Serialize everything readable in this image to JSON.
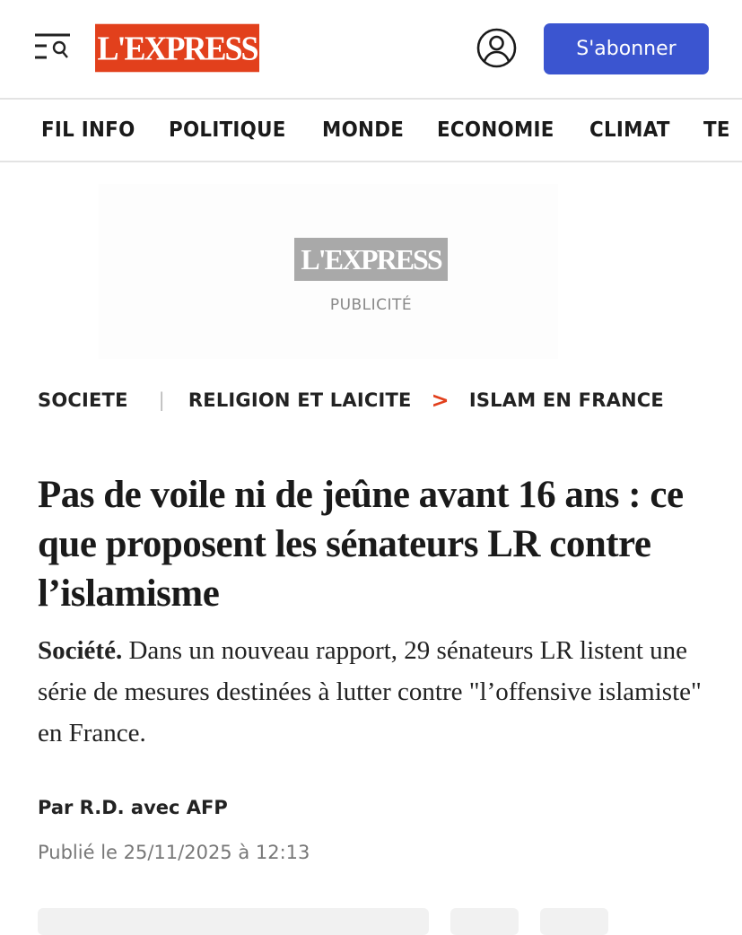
{
  "header": {
    "logo": "L'EXPRESS",
    "subscribe_label": "S'abonner",
    "brand_color": "#e2401c",
    "button_color": "#3b55d0"
  },
  "nav": {
    "items": [
      "FIL INFO",
      "POLITIQUE",
      "MONDE",
      "ECONOMIE",
      "CLIMAT",
      "TE"
    ]
  },
  "ad": {
    "logo": "L'EXPRESS",
    "label": "PUBLICITÉ"
  },
  "breadcrumb": {
    "section": "SOCIETE",
    "category": "RELIGION ET LAICITE",
    "subcategory": "ISLAM EN FRANCE"
  },
  "article": {
    "title": "Pas de voile ni de jeûne avant 16 ans : ce que proposent les sénateurs LR contre l’islamisme",
    "lede_label": "Société.",
    "lede": " Dans un nouveau rapport, 29 sénateurs LR listent une série de mesures destinées à lutter contre \"l’offensive islamiste\" en France.",
    "byline": "Par R.D. avec AFP",
    "published": "Publié le 25/11/2025 à 12:13"
  }
}
